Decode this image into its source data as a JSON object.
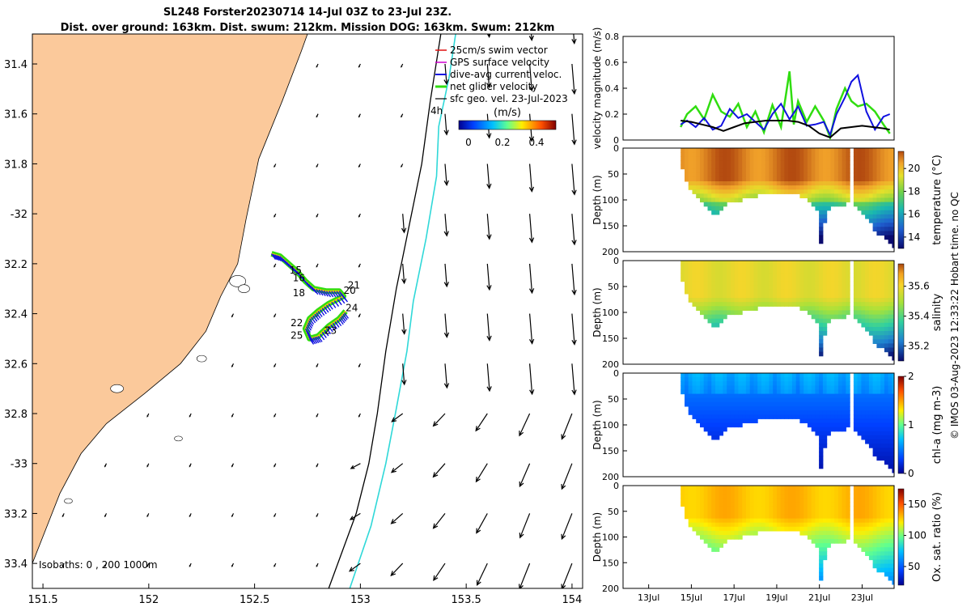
{
  "title": {
    "line1": "SL248 Forster20230714 14-Jul 03Z to 23-Jul 23Z.",
    "line2": "Dist. over ground: 163km. Dist. swum: 212km. Mission DOG: 163km. Swum: 212km"
  },
  "credit": "© IMOS 03-Aug-2023 12:33:22 Hobart time. no QC",
  "colors": {
    "land": "#fbc99b",
    "isobath_200": "#000000",
    "isobath_1000": "#2fd8d8",
    "glider_line": "#f5d000",
    "speed": "#1010e0",
    "net": "#30dd10",
    "sfc": "#000000"
  },
  "chart_data": [
    {
      "id": "map",
      "type": "scatter",
      "title": "Glider track map with surface geostrophic velocity",
      "xlim": [
        151.45,
        154.05
      ],
      "ylim": [
        -33.5,
        -31.28
      ],
      "xticks": [
        151.5,
        152,
        152.5,
        153,
        153.5,
        154
      ],
      "xtick_labels": [
        "151.5",
        "152",
        "152.5",
        "153",
        "153.5",
        "154"
      ],
      "yticks": [
        -31.4,
        -31.6,
        -31.8,
        -32,
        -32.2,
        -32.4,
        -32.6,
        -32.8,
        -33,
        -33.2,
        -33.4
      ],
      "ytick_labels": [
        "31.4",
        "31.6",
        "31.8",
        "-32",
        "32.2",
        "32.4",
        "32.6",
        "32.8",
        "-33",
        "33.2",
        "33.4"
      ],
      "legend": [
        "25cm/s swim vector",
        "GPS surface velocity",
        "dive-avg current veloc.",
        "net glider velocity",
        "sfc geo. vel. 23-Jul-2023"
      ],
      "legend_time_label": "4h",
      "colorbar": {
        "label": "(m/s)",
        "ticks": [
          "0",
          "0.2",
          "0.4"
        ],
        "range": [
          0,
          0.5
        ]
      },
      "isobath_label": "Isobaths: 0 , 200 1000m",
      "day_labels": [
        "15",
        "16",
        "18",
        "20",
        "21",
        "22",
        "23",
        "24",
        "25"
      ],
      "track": [
        [
          152.58,
          -32.16
        ],
        [
          152.62,
          -32.17
        ],
        [
          152.66,
          -32.2
        ],
        [
          152.7,
          -32.23
        ],
        [
          152.74,
          -32.27
        ],
        [
          152.78,
          -32.3
        ],
        [
          152.84,
          -32.31
        ],
        [
          152.9,
          -32.31
        ],
        [
          152.92,
          -32.33
        ],
        [
          152.85,
          -32.36
        ],
        [
          152.8,
          -32.39
        ],
        [
          152.76,
          -32.42
        ],
        [
          152.74,
          -32.46
        ],
        [
          152.76,
          -32.5
        ],
        [
          152.8,
          -32.49
        ],
        [
          152.85,
          -32.45
        ],
        [
          152.9,
          -32.42
        ],
        [
          152.93,
          -32.39
        ]
      ],
      "isobath_200": [
        [
          152.85,
          -33.5
        ],
        [
          152.98,
          -33.2
        ],
        [
          153.04,
          -33.0
        ],
        [
          153.08,
          -32.8
        ],
        [
          153.12,
          -32.55
        ],
        [
          153.17,
          -32.3
        ],
        [
          153.23,
          -32.05
        ],
        [
          153.29,
          -31.8
        ],
        [
          153.33,
          -31.55
        ],
        [
          153.38,
          -31.28
        ]
      ],
      "isobath_1000": [
        [
          152.95,
          -33.5
        ],
        [
          153.05,
          -33.25
        ],
        [
          153.12,
          -33.0
        ],
        [
          153.17,
          -32.78
        ],
        [
          153.22,
          -32.55
        ],
        [
          153.25,
          -32.35
        ],
        [
          153.31,
          -32.1
        ],
        [
          153.36,
          -31.85
        ],
        [
          153.37,
          -31.65
        ],
        [
          153.42,
          -31.45
        ],
        [
          153.45,
          -31.28
        ]
      ],
      "coastline": [
        [
          151.45,
          -33.4
        ],
        [
          151.58,
          -33.12
        ],
        [
          151.68,
          -32.96
        ],
        [
          151.8,
          -32.84
        ],
        [
          151.98,
          -32.72
        ],
        [
          152.15,
          -32.6
        ],
        [
          152.27,
          -32.47
        ],
        [
          152.34,
          -32.33
        ],
        [
          152.42,
          -32.2
        ],
        [
          152.46,
          -32.02
        ],
        [
          152.52,
          -31.78
        ],
        [
          152.63,
          -31.55
        ],
        [
          152.72,
          -31.35
        ],
        [
          152.75,
          -31.28
        ]
      ],
      "vector_grid": {
        "lon_start": 151.6,
        "lon_step": 0.2,
        "lat_start": -33.4,
        "lat_step": 0.2
      }
    },
    {
      "id": "velocity",
      "type": "line",
      "ylabel": "velocity magnitude (m/s)",
      "ylim": [
        0,
        0.8
      ],
      "yticks": [
        0,
        0.2,
        0.4,
        0.6,
        0.8
      ],
      "xlim": [
        11.8,
        24.5
      ],
      "series": [
        {
          "name": "speed",
          "x": [
            14.5,
            14.8,
            15.2,
            15.6,
            16.0,
            16.4,
            16.8,
            17.2,
            17.6,
            18.0,
            18.4,
            18.8,
            19.2,
            19.6,
            20.0,
            20.4,
            20.8,
            21.2,
            21.5,
            21.8,
            22.2,
            22.5,
            22.8,
            23.2,
            23.6,
            24.0,
            24.3
          ],
          "y": [
            0.12,
            0.15,
            0.1,
            0.17,
            0.08,
            0.11,
            0.24,
            0.17,
            0.2,
            0.14,
            0.08,
            0.2,
            0.28,
            0.16,
            0.26,
            0.11,
            0.12,
            0.14,
            0.04,
            0.2,
            0.33,
            0.45,
            0.5,
            0.22,
            0.08,
            0.18,
            0.2
          ]
        },
        {
          "name": "net",
          "x": [
            14.5,
            14.8,
            15.2,
            15.6,
            16.0,
            16.4,
            16.8,
            17.2,
            17.6,
            18.0,
            18.4,
            18.8,
            19.2,
            19.6,
            19.8,
            20.0,
            20.4,
            20.8,
            21.2,
            21.5,
            21.8,
            22.2,
            22.5,
            22.8,
            23.2,
            23.6,
            24.0,
            24.3
          ],
          "y": [
            0.1,
            0.2,
            0.26,
            0.16,
            0.35,
            0.22,
            0.18,
            0.28,
            0.1,
            0.22,
            0.06,
            0.27,
            0.1,
            0.53,
            0.12,
            0.3,
            0.14,
            0.26,
            0.15,
            0.02,
            0.24,
            0.4,
            0.3,
            0.26,
            0.28,
            0.22,
            0.12,
            0.05
          ]
        },
        {
          "name": "sfc",
          "x": [
            14.5,
            15.0,
            15.5,
            16.0,
            16.5,
            17.0,
            17.5,
            18.0,
            18.5,
            19.0,
            19.5,
            20.0,
            20.5,
            21.0,
            21.5,
            22.0,
            22.5,
            23.0,
            23.5,
            24.0,
            24.3
          ],
          "y": [
            0.15,
            0.14,
            0.12,
            0.1,
            0.07,
            0.1,
            0.13,
            0.14,
            0.15,
            0.15,
            0.15,
            0.14,
            0.11,
            0.05,
            0.02,
            0.09,
            0.1,
            0.11,
            0.1,
            0.09,
            0.08
          ]
        }
      ]
    },
    {
      "id": "temperature",
      "type": "heatmap",
      "ylabel": "Depth (m)",
      "clabel": "temperature (°C)",
      "ylim": [
        0,
        200
      ],
      "yticks": [
        0,
        50,
        100,
        150,
        200
      ],
      "cticks": [
        14,
        16,
        18,
        20
      ],
      "crange": [
        13,
        21.5
      ],
      "colormap": "thermal"
    },
    {
      "id": "salinity",
      "type": "heatmap",
      "ylabel": "Depth (m)",
      "clabel": "salinity",
      "ylim": [
        0,
        200
      ],
      "yticks": [
        0,
        50,
        100,
        150,
        200
      ],
      "cticks": [
        35.2,
        35.4,
        35.6
      ],
      "crange": [
        35.1,
        35.75
      ],
      "colormap": "haline"
    },
    {
      "id": "chla",
      "type": "heatmap",
      "ylabel": "Depth (m)",
      "clabel": "chl-a (mg m-3)",
      "ylim": [
        0,
        200
      ],
      "yticks": [
        0,
        50,
        100,
        150,
        200
      ],
      "cticks": [
        0,
        1,
        2
      ],
      "crange": [
        0,
        2
      ],
      "colormap": "jet"
    },
    {
      "id": "oxygen",
      "type": "heatmap",
      "ylabel": "Depth (m)",
      "clabel": "Ox. sat. ratio (%)",
      "ylim": [
        0,
        200
      ],
      "yticks": [
        0,
        50,
        100,
        150,
        200
      ],
      "cticks": [
        50,
        100,
        150
      ],
      "crange": [
        20,
        175
      ],
      "colormap": "jet"
    }
  ],
  "time_axis": {
    "ticks": [
      13,
      15,
      17,
      19,
      21,
      23
    ],
    "labels": [
      "13Jul",
      "15Jul",
      "17Jul",
      "19Jul",
      "21Jul",
      "23Jul"
    ],
    "xlim": [
      11.8,
      24.5
    ]
  },
  "section_profile": {
    "t_start": 14.5,
    "t_end": 24.4,
    "gap": [
      22.4,
      22.55
    ],
    "bottom": [
      [
        14.5,
        40
      ],
      [
        14.8,
        70
      ],
      [
        15.2,
        95
      ],
      [
        15.6,
        110
      ],
      [
        15.9,
        125
      ],
      [
        16.1,
        122
      ],
      [
        16.5,
        105
      ],
      [
        17.0,
        100
      ],
      [
        17.5,
        92
      ],
      [
        18.0,
        88
      ],
      [
        18.5,
        85
      ],
      [
        19.0,
        80
      ],
      [
        19.5,
        82
      ],
      [
        20.0,
        88
      ],
      [
        20.5,
        100
      ],
      [
        20.8,
        120
      ],
      [
        21.0,
        185
      ],
      [
        21.2,
        125
      ],
      [
        21.6,
        105
      ],
      [
        22.0,
        110
      ],
      [
        22.4,
        95
      ],
      [
        22.55,
        105
      ],
      [
        22.9,
        120
      ],
      [
        23.3,
        140
      ],
      [
        23.6,
        160
      ],
      [
        24.0,
        170
      ],
      [
        24.4,
        185
      ]
    ]
  }
}
